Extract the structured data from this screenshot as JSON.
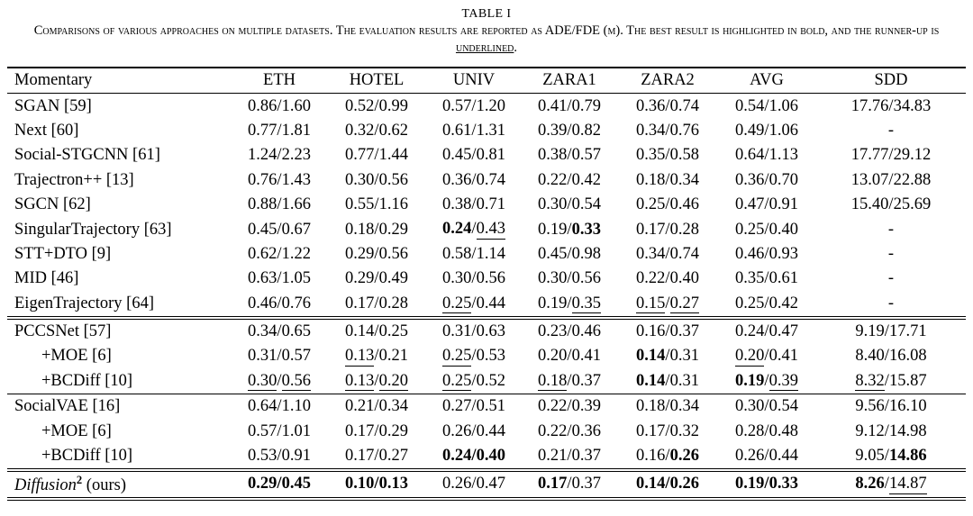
{
  "caption": {
    "label": "TABLE I",
    "text_before": "Comparisons of various approaches on multiple datasets. The evaluation results are reported as ADE/FDE (m). The best result is highlighted in bold, and the runner-up is ",
    "underlined_word": "underlined",
    "text_after": "."
  },
  "table": {
    "columns": [
      "Momentary",
      "ETH",
      "HOTEL",
      "UNIV",
      "ZARA1",
      "ZARA2",
      "AVG",
      "SDD"
    ],
    "style_legend": {
      "b": "bold = best result",
      "u": "underline = runner-up",
      "": "plain"
    },
    "groups": [
      {
        "rows": [
          {
            "name": "SGAN [59]",
            "indent": 0,
            "cells": [
              [
                "0.86",
                "",
                "1.60",
                ""
              ],
              [
                "0.52",
                "",
                "0.99",
                ""
              ],
              [
                "0.57",
                "",
                "1.20",
                ""
              ],
              [
                "0.41",
                "",
                "0.79",
                ""
              ],
              [
                "0.36",
                "",
                "0.74",
                ""
              ],
              [
                "0.54",
                "",
                "1.06",
                ""
              ],
              [
                "17.76",
                "",
                "34.83",
                ""
              ]
            ]
          },
          {
            "name": "Next [60]",
            "indent": 0,
            "cells": [
              [
                "0.77",
                "",
                "1.81",
                ""
              ],
              [
                "0.32",
                "",
                "0.62",
                ""
              ],
              [
                "0.61",
                "",
                "1.31",
                ""
              ],
              [
                "0.39",
                "",
                "0.82",
                ""
              ],
              [
                "0.34",
                "",
                "0.76",
                ""
              ],
              [
                "0.49",
                "",
                "1.06",
                ""
              ],
              "-"
            ]
          },
          {
            "name": "Social-STGCNN [61]",
            "indent": 0,
            "cells": [
              [
                "1.24",
                "",
                "2.23",
                ""
              ],
              [
                "0.77",
                "",
                "1.44",
                ""
              ],
              [
                "0.45",
                "",
                "0.81",
                ""
              ],
              [
                "0.38",
                "",
                "0.57",
                ""
              ],
              [
                "0.35",
                "",
                "0.58",
                ""
              ],
              [
                "0.64",
                "",
                "1.13",
                ""
              ],
              [
                "17.77",
                "",
                "29.12",
                ""
              ]
            ]
          },
          {
            "name": "Trajectron++ [13]",
            "indent": 0,
            "cells": [
              [
                "0.76",
                "",
                "1.43",
                ""
              ],
              [
                "0.30",
                "",
                "0.56",
                ""
              ],
              [
                "0.36",
                "",
                "0.74",
                ""
              ],
              [
                "0.22",
                "",
                "0.42",
                ""
              ],
              [
                "0.18",
                "",
                "0.34",
                ""
              ],
              [
                "0.36",
                "",
                "0.70",
                ""
              ],
              [
                "13.07",
                "",
                "22.88",
                ""
              ]
            ]
          },
          {
            "name": "SGCN [62]",
            "indent": 0,
            "cells": [
              [
                "0.88",
                "",
                "1.66",
                ""
              ],
              [
                "0.55",
                "",
                "1.16",
                ""
              ],
              [
                "0.38",
                "",
                "0.71",
                ""
              ],
              [
                "0.30",
                "",
                "0.54",
                ""
              ],
              [
                "0.25",
                "",
                "0.46",
                ""
              ],
              [
                "0.47",
                "",
                "0.91",
                ""
              ],
              [
                "15.40",
                "",
                "25.69",
                ""
              ]
            ]
          },
          {
            "name": "SingularTrajectory [63]",
            "indent": 0,
            "cells": [
              [
                "0.45",
                "",
                "0.67",
                ""
              ],
              [
                "0.18",
                "",
                "0.29",
                ""
              ],
              [
                "0.24",
                "b",
                "0.43",
                "u"
              ],
              [
                "0.19",
                "",
                "0.33",
                "b"
              ],
              [
                "0.17",
                "",
                "0.28",
                ""
              ],
              [
                "0.25",
                "",
                "0.40",
                ""
              ],
              "-"
            ]
          },
          {
            "name": "STT+DTO [9]",
            "indent": 0,
            "cells": [
              [
                "0.62",
                "",
                "1.22",
                ""
              ],
              [
                "0.29",
                "",
                "0.56",
                ""
              ],
              [
                "0.58",
                "",
                "1.14",
                ""
              ],
              [
                "0.45",
                "",
                "0.98",
                ""
              ],
              [
                "0.34",
                "",
                "0.74",
                ""
              ],
              [
                "0.46",
                "",
                "0.93",
                ""
              ],
              "-"
            ]
          },
          {
            "name": "MID [46]",
            "indent": 0,
            "cells": [
              [
                "0.63",
                "",
                "1.05",
                ""
              ],
              [
                "0.29",
                "",
                "0.49",
                ""
              ],
              [
                "0.30",
                "",
                "0.56",
                ""
              ],
              [
                "0.30",
                "",
                "0.56",
                ""
              ],
              [
                "0.22",
                "",
                "0.40",
                ""
              ],
              [
                "0.35",
                "",
                "0.61",
                ""
              ],
              "-"
            ]
          },
          {
            "name": "EigenTrajectory [64]",
            "indent": 0,
            "cells": [
              [
                "0.46",
                "",
                "0.76",
                ""
              ],
              [
                "0.17",
                "",
                "0.28",
                ""
              ],
              [
                "0.25",
                "u",
                "0.44",
                ""
              ],
              [
                "0.19",
                "",
                "0.35",
                "u"
              ],
              [
                "0.15",
                "u",
                "0.27",
                "u"
              ],
              [
                "0.25",
                "",
                "0.42",
                ""
              ],
              "-"
            ]
          }
        ]
      },
      {
        "rows": [
          {
            "name": "PCCSNet [57]",
            "indent": 0,
            "cells": [
              [
                "0.34",
                "",
                "0.65",
                ""
              ],
              [
                "0.14",
                "",
                "0.25",
                ""
              ],
              [
                "0.31",
                "",
                "0.63",
                ""
              ],
              [
                "0.23",
                "",
                "0.46",
                ""
              ],
              [
                "0.16",
                "",
                "0.37",
                ""
              ],
              [
                "0.24",
                "",
                "0.47",
                ""
              ],
              [
                "9.19",
                "",
                "17.71",
                ""
              ]
            ]
          },
          {
            "name": "+MOE [6]",
            "indent": 1,
            "cells": [
              [
                "0.31",
                "",
                "0.57",
                ""
              ],
              [
                "0.13",
                "u",
                "0.21",
                ""
              ],
              [
                "0.25",
                "u",
                "0.53",
                ""
              ],
              [
                "0.20",
                "",
                "0.41",
                ""
              ],
              [
                "0.14",
                "b",
                "0.31",
                ""
              ],
              [
                "0.20",
                "u",
                "0.41",
                ""
              ],
              [
                "8.40",
                "",
                "16.08",
                ""
              ]
            ]
          },
          {
            "name": "+BCDiff [10]",
            "indent": 1,
            "cells": [
              [
                "0.30",
                "u",
                "0.56",
                "u"
              ],
              [
                "0.13",
                "u",
                "0.20",
                "u"
              ],
              [
                "0.25",
                "u",
                "0.52",
                ""
              ],
              [
                "0.18",
                "u",
                "0.37",
                ""
              ],
              [
                "0.14",
                "b",
                "0.31",
                ""
              ],
              [
                "0.19",
                "b",
                "0.39",
                "u"
              ],
              [
                "8.32",
                "u",
                "15.87",
                ""
              ]
            ]
          }
        ]
      },
      {
        "rows": [
          {
            "name": "SocialVAE [16]",
            "indent": 0,
            "cells": [
              [
                "0.64",
                "",
                "1.10",
                ""
              ],
              [
                "0.21",
                "",
                "0.34",
                ""
              ],
              [
                "0.27",
                "",
                "0.51",
                ""
              ],
              [
                "0.22",
                "",
                "0.39",
                ""
              ],
              [
                "0.18",
                "",
                "0.34",
                ""
              ],
              [
                "0.30",
                "",
                "0.54",
                ""
              ],
              [
                "9.56",
                "",
                "16.10",
                ""
              ]
            ]
          },
          {
            "name": "+MOE [6]",
            "indent": 1,
            "cells": [
              [
                "0.57",
                "",
                "1.01",
                ""
              ],
              [
                "0.17",
                "",
                "0.29",
                ""
              ],
              [
                "0.26",
                "",
                "0.44",
                ""
              ],
              [
                "0.22",
                "",
                "0.36",
                ""
              ],
              [
                "0.17",
                "",
                "0.32",
                ""
              ],
              [
                "0.28",
                "",
                "0.48",
                ""
              ],
              [
                "9.12",
                "",
                "14.98",
                ""
              ]
            ]
          },
          {
            "name": "+BCDiff [10]",
            "indent": 1,
            "cells": [
              [
                "0.53",
                "",
                "0.91",
                ""
              ],
              [
                "0.17",
                "",
                "0.27",
                ""
              ],
              [
                "0.24",
                "b",
                "0.40",
                "b"
              ],
              [
                "0.21",
                "",
                "0.37",
                ""
              ],
              [
                "0.16",
                "",
                "0.26",
                "b"
              ],
              [
                "0.26",
                "",
                "0.44",
                ""
              ],
              [
                "9.05",
                "",
                "14.86",
                "b"
              ]
            ]
          }
        ]
      },
      {
        "rows": [
          {
            "name_parts": {
              "italic": "Diffusion",
              "sup": "2",
              "rest": " (ours)"
            },
            "indent": 0,
            "cells": [
              [
                "0.29",
                "b",
                "0.45",
                "b"
              ],
              [
                "0.10",
                "b",
                "0.13",
                "b"
              ],
              [
                "0.26",
                "",
                "0.47",
                ""
              ],
              [
                "0.17",
                "b",
                "0.37",
                ""
              ],
              [
                "0.14",
                "b",
                "0.26",
                "b"
              ],
              [
                "0.19",
                "b",
                "0.33",
                "b"
              ],
              [
                "8.26",
                "b",
                "14.87",
                "u"
              ]
            ]
          }
        ]
      }
    ]
  }
}
